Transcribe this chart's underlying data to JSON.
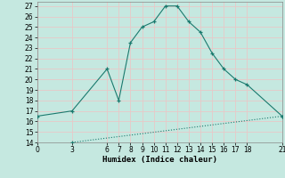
{
  "curve1_x": [
    0,
    3,
    6,
    7,
    8,
    9,
    10,
    11,
    12,
    13,
    14,
    15,
    16,
    17,
    18,
    21
  ],
  "curve1_y": [
    16.5,
    17.0,
    21.0,
    18.0,
    23.5,
    25.0,
    25.5,
    27.0,
    27.0,
    25.5,
    24.5,
    22.5,
    21.0,
    20.0,
    19.5,
    16.5
  ],
  "curve2_x": [
    3,
    21
  ],
  "curve2_y": [
    14.0,
    16.5
  ],
  "line_color": "#1a7a6e",
  "bg_color": "#c5e8e0",
  "grid_color": "#e8c8c8",
  "xlabel": "Humidex (Indice chaleur)",
  "xlim": [
    0,
    21
  ],
  "ylim": [
    14,
    27.4
  ],
  "xticks": [
    0,
    3,
    6,
    7,
    8,
    9,
    10,
    11,
    12,
    13,
    14,
    15,
    16,
    17,
    18,
    21
  ],
  "yticks": [
    14,
    15,
    16,
    17,
    18,
    19,
    20,
    21,
    22,
    23,
    24,
    25,
    26,
    27
  ],
  "tick_fontsize": 5.5,
  "xlabel_fontsize": 6.5
}
